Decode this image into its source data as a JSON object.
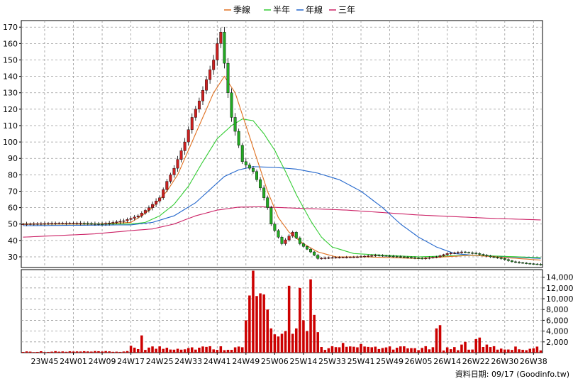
{
  "chart_data": {
    "type": "candlestick",
    "legend": [
      {
        "name": "季線",
        "color": "#e07020"
      },
      {
        "name": "半年",
        "color": "#33cc33"
      },
      {
        "name": "年線",
        "color": "#2266cc"
      },
      {
        "name": "三年",
        "color": "#cc2266"
      }
    ],
    "up_color": "#cc2020",
    "down_color": "#22aa22",
    "volume_color": "#cc0000",
    "grid": true,
    "legend_placement": "top-center",
    "price_axis": {
      "ylim": [
        23.5,
        174
      ],
      "ticks": [
        30,
        40,
        50,
        60,
        70,
        80,
        90,
        100,
        110,
        120,
        130,
        140,
        150,
        160,
        170
      ]
    },
    "volume_axis": {
      "ylim": [
        0,
        15400
      ],
      "ticks": [
        2000,
        4000,
        6000,
        8000,
        10000,
        12000,
        14000
      ],
      "tick_labels": [
        "2,000",
        "4,000",
        "6,000",
        "8,000",
        "10,000",
        "12,000",
        "14,000"
      ]
    },
    "x_tick_labels": [
      "23W45",
      "24W01",
      "24W09",
      "24W17",
      "24W25",
      "24W33",
      "24W41",
      "24W49",
      "25W06",
      "25W14",
      "25W33",
      "25W41",
      "25W49",
      "26W05",
      "26W14",
      "26W22",
      "26W30",
      "26W38"
    ],
    "x_tick_index": [
      6,
      14,
      22,
      30,
      38,
      46,
      54,
      62,
      70,
      78,
      86,
      94,
      102,
      110,
      118,
      126,
      134,
      142
    ],
    "price_path_weekly": [
      [
        0,
        50
      ],
      [
        10,
        50.5
      ],
      [
        16,
        50.5
      ],
      [
        22,
        50
      ],
      [
        28,
        52
      ],
      [
        32,
        55
      ],
      [
        35,
        60
      ],
      [
        38,
        66
      ],
      [
        40,
        76
      ],
      [
        42,
        84
      ],
      [
        45,
        100
      ],
      [
        47,
        115
      ],
      [
        49,
        125
      ],
      [
        51,
        138
      ],
      [
        53,
        150
      ],
      [
        54,
        160
      ],
      [
        55,
        167
      ],
      [
        56,
        148
      ],
      [
        57,
        130
      ],
      [
        58,
        115
      ],
      [
        60,
        98
      ],
      [
        61,
        88
      ],
      [
        64,
        82
      ],
      [
        66,
        72
      ],
      [
        68,
        60
      ],
      [
        69,
        50
      ],
      [
        71,
        42
      ],
      [
        72,
        38
      ],
      [
        75,
        45
      ],
      [
        77,
        38
      ],
      [
        80,
        33
      ],
      [
        82,
        29
      ],
      [
        85,
        29.5
      ],
      [
        93,
        30
      ],
      [
        98,
        31
      ],
      [
        105,
        30
      ],
      [
        111,
        29
      ],
      [
        115,
        30
      ],
      [
        118,
        32
      ],
      [
        122,
        33
      ],
      [
        126,
        32
      ],
      [
        130,
        30
      ],
      [
        133,
        29
      ],
      [
        136,
        27
      ],
      [
        140,
        26
      ],
      [
        144,
        25.3
      ]
    ],
    "ma_quarter": [
      [
        0,
        50
      ],
      [
        20,
        50
      ],
      [
        30,
        51
      ],
      [
        33,
        55
      ],
      [
        36,
        60
      ],
      [
        40,
        70
      ],
      [
        43,
        80
      ],
      [
        46,
        95
      ],
      [
        50,
        115
      ],
      [
        53,
        130
      ],
      [
        56,
        140
      ],
      [
        59,
        130
      ],
      [
        62,
        110
      ],
      [
        65,
        90
      ],
      [
        68,
        70
      ],
      [
        71,
        54
      ],
      [
        74,
        45
      ],
      [
        78,
        38
      ],
      [
        82,
        33
      ],
      [
        87,
        30
      ],
      [
        95,
        30
      ],
      [
        110,
        29
      ],
      [
        125,
        31
      ],
      [
        144,
        28
      ]
    ],
    "ma_halfyear": [
      [
        0,
        50
      ],
      [
        30,
        50
      ],
      [
        34,
        51
      ],
      [
        38,
        55
      ],
      [
        42,
        62
      ],
      [
        46,
        73
      ],
      [
        50,
        88
      ],
      [
        54,
        102
      ],
      [
        58,
        110
      ],
      [
        61,
        114
      ],
      [
        64,
        113
      ],
      [
        67,
        105
      ],
      [
        70,
        95
      ],
      [
        73,
        82
      ],
      [
        76,
        68
      ],
      [
        80,
        52
      ],
      [
        83,
        42
      ],
      [
        86,
        36
      ],
      [
        92,
        32
      ],
      [
        100,
        31
      ],
      [
        110,
        30
      ],
      [
        125,
        31
      ],
      [
        144,
        29.5
      ]
    ],
    "ma_year": [
      [
        0,
        49
      ],
      [
        30,
        49.5
      ],
      [
        36,
        51
      ],
      [
        42,
        55
      ],
      [
        48,
        63
      ],
      [
        52,
        71
      ],
      [
        56,
        79
      ],
      [
        60,
        83
      ],
      [
        64,
        85
      ],
      [
        70,
        84.5
      ],
      [
        76,
        83.5
      ],
      [
        82,
        81
      ],
      [
        88,
        77
      ],
      [
        94,
        70
      ],
      [
        100,
        60
      ],
      [
        105,
        50
      ],
      [
        110,
        42
      ],
      [
        115,
        36
      ],
      [
        120,
        32
      ],
      [
        125,
        31
      ],
      [
        135,
        30
      ],
      [
        144,
        29
      ]
    ],
    "ma_3year": [
      [
        0,
        42
      ],
      [
        20,
        44
      ],
      [
        30,
        46
      ],
      [
        36,
        47
      ],
      [
        42,
        50
      ],
      [
        48,
        55
      ],
      [
        54,
        58.5
      ],
      [
        60,
        60.3
      ],
      [
        66,
        60.5
      ],
      [
        78,
        59.5
      ],
      [
        90,
        58.5
      ],
      [
        100,
        57
      ],
      [
        110,
        55.5
      ],
      [
        120,
        54.5
      ],
      [
        130,
        53.5
      ],
      [
        144,
        52.5
      ]
    ],
    "volume_spikes": [
      [
        33,
        3200
      ],
      [
        62,
        6000
      ],
      [
        63,
        10600
      ],
      [
        64,
        15200
      ],
      [
        65,
        10500
      ],
      [
        66,
        11000
      ],
      [
        67,
        10800
      ],
      [
        68,
        8000
      ],
      [
        69,
        4500
      ],
      [
        70,
        3400
      ],
      [
        71,
        3000
      ],
      [
        72,
        3500
      ],
      [
        73,
        4000
      ],
      [
        74,
        12400
      ],
      [
        75,
        3500
      ],
      [
        76,
        4500
      ],
      [
        77,
        12000
      ],
      [
        78,
        6000
      ],
      [
        79,
        4000
      ],
      [
        80,
        13600
      ],
      [
        81,
        7000
      ],
      [
        82,
        3800
      ],
      [
        86,
        1200
      ],
      [
        89,
        1800
      ],
      [
        92,
        1100
      ],
      [
        94,
        1600
      ],
      [
        97,
        1000
      ],
      [
        115,
        4500
      ],
      [
        116,
        5100
      ],
      [
        122,
        1500
      ],
      [
        123,
        2000
      ],
      [
        126,
        2500
      ],
      [
        127,
        2800
      ],
      [
        129,
        1500
      ],
      [
        131,
        1200
      ]
    ],
    "footer": "資料日期: 09/17  (Goodinfo.tw)"
  }
}
